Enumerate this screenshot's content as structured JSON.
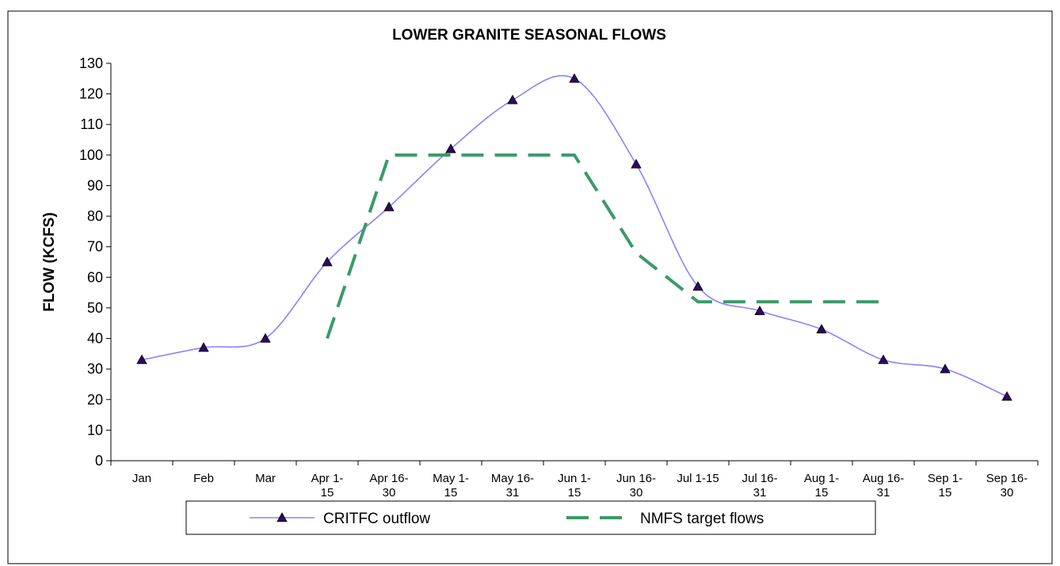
{
  "chart_data": {
    "type": "line",
    "title": "LOWER GRANITE SEASONAL FLOWS",
    "y_label": "FLOW (KCFS)",
    "categories": [
      "Jan",
      "Feb",
      "Mar",
      "Apr 1-\n15",
      "Apr 16-\n30",
      "May 1-\n15",
      "May 16-\n31",
      "Jun 1-\n15",
      "Jun 16-\n30",
      "Jul 1-15",
      "Jul 16-\n31",
      "Aug 1-\n15",
      "Aug 16-\n31",
      "Sep 1-\n15",
      "Sep 16-\n30"
    ],
    "series": [
      {
        "name": "CRITFC outflow",
        "color": "#8c80ff",
        "marker_color": "#2e0a5e",
        "marker": "triangle",
        "smooth": true,
        "dash": false,
        "values": [
          33,
          37,
          40,
          65,
          83,
          102,
          118,
          125,
          97,
          57,
          49,
          43,
          33,
          30,
          21
        ]
      },
      {
        "name": "NMFS target flows",
        "color": "#3a9a6a",
        "marker": "none",
        "smooth": false,
        "dash": true,
        "values": [
          null,
          null,
          null,
          40,
          100,
          100,
          100,
          100,
          68,
          52,
          52,
          52,
          52,
          null,
          null
        ]
      }
    ],
    "ylim": [
      0,
      130
    ],
    "yticks": [
      0,
      10,
      20,
      30,
      40,
      50,
      60,
      70,
      80,
      90,
      100,
      110,
      120,
      130
    ],
    "grid": false,
    "legend": "bottom"
  }
}
